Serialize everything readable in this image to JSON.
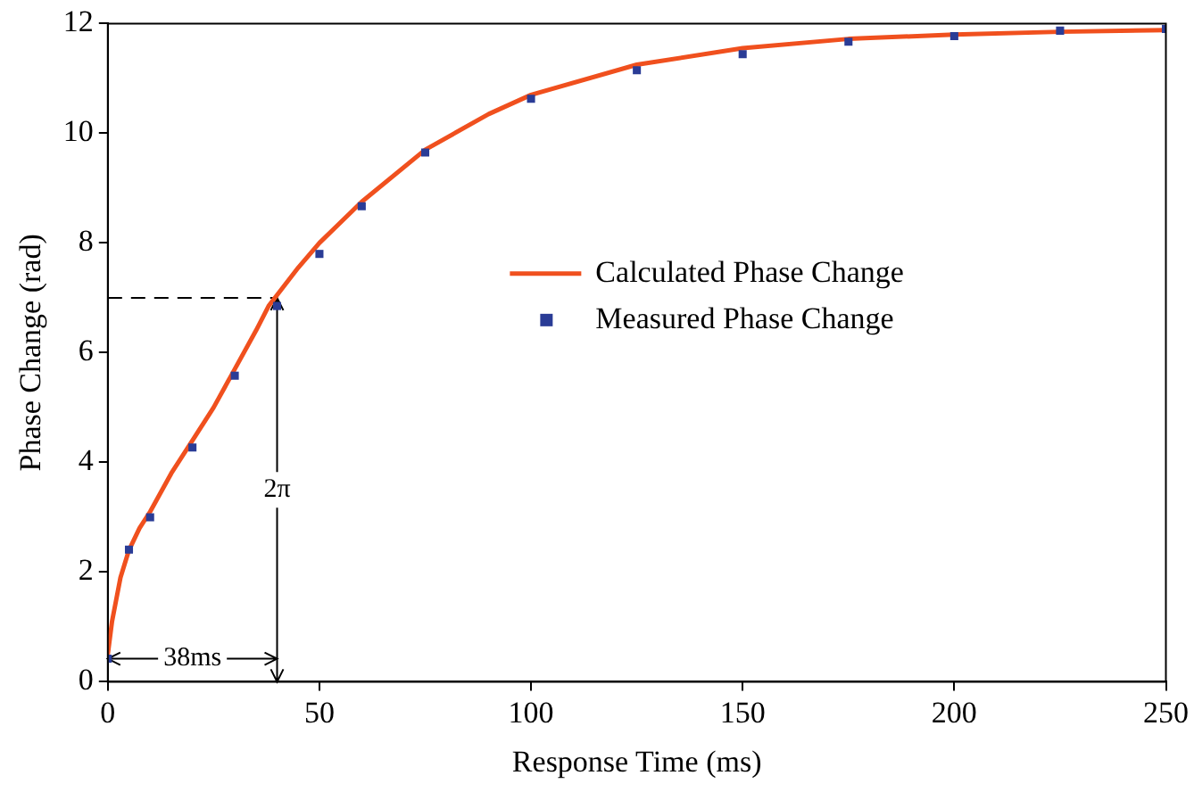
{
  "chart_data": {
    "type": "scatter",
    "xlabel": "Response Time (ms)",
    "ylabel": "Phase Change (rad)",
    "xlim": [
      0,
      250
    ],
    "xticks": [
      0,
      50,
      100,
      150,
      200,
      250
    ],
    "ylim": [
      0,
      12
    ],
    "yticks": [
      0,
      2,
      4,
      6,
      8,
      10,
      12
    ],
    "grid": false,
    "legend": "right",
    "series": [
      {
        "name": "Calculated Phase Change",
        "type": "line",
        "color": "#f0501e",
        "marker": "none",
        "line_style": "solid",
        "x": [
          0,
          1,
          2,
          3,
          5,
          7.5,
          10,
          15,
          20,
          25,
          30,
          35,
          38,
          40,
          45,
          50,
          60,
          75,
          90,
          100,
          125,
          150,
          175,
          200,
          225,
          250
        ],
        "values": [
          0.5,
          1.1,
          1.5,
          1.9,
          2.4,
          2.8,
          3.1,
          3.8,
          4.4,
          5.0,
          5.7,
          6.4,
          6.85,
          7.05,
          7.55,
          8.0,
          8.75,
          9.7,
          10.35,
          10.7,
          11.25,
          11.55,
          11.72,
          11.8,
          11.85,
          11.88
        ]
      },
      {
        "name": "Measured Phase Change",
        "type": "scatter",
        "color": "#2a3c96",
        "marker": "square",
        "x": [
          0,
          5,
          10,
          20,
          30,
          40,
          50,
          60,
          75,
          100,
          125,
          150,
          175,
          200,
          225,
          250
        ],
        "values": [
          0.42,
          2.41,
          3.0,
          4.27,
          5.58,
          6.85,
          7.8,
          8.67,
          9.65,
          10.63,
          11.15,
          11.44,
          11.67,
          11.77,
          11.87,
          11.9
        ]
      }
    ],
    "ref_lines": [
      {
        "axis": "y",
        "value": 7,
        "line_style": "dashed",
        "color": "#000000"
      },
      {
        "axis": "x",
        "value": 40,
        "label": "2π",
        "color": "#000000"
      }
    ],
    "annotations": [
      {
        "text": "38ms",
        "x": 0,
        "y": 0.42
      }
    ]
  }
}
